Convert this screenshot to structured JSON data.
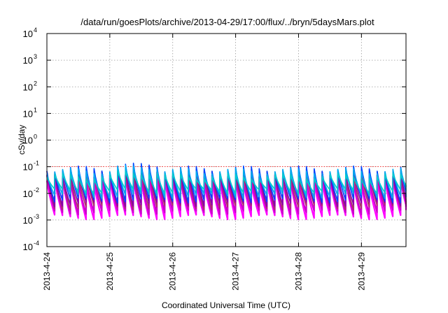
{
  "chart_data": {
    "type": "line",
    "title": "/data/run/goesPlots/archive/2013-04-29/17:00/flux/../bryn/5daysMars.plot",
    "xlabel": "Coordinated Universal Time (UTC)",
    "ylabel": "cSv/day",
    "yscale": "log",
    "ylim": [
      0.0001,
      10000
    ],
    "xlim": [
      "2013-04-24 00:00",
      "2013-04-29 17:00"
    ],
    "grid": true,
    "x_tick_labels": [
      "2013-4-24",
      "2013-4-25",
      "2013-4-26",
      "2013-4-27",
      "2013-4-28",
      "2013-4-29"
    ],
    "y_ticks": [
      {
        "value": 0.0001,
        "base": "10",
        "exp": "-4"
      },
      {
        "value": 0.001,
        "base": "10",
        "exp": "-3"
      },
      {
        "value": 0.01,
        "base": "10",
        "exp": "-2"
      },
      {
        "value": 0.1,
        "base": "10",
        "exp": "-1"
      },
      {
        "value": 1,
        "base": "10",
        "exp": "0"
      },
      {
        "value": 10,
        "base": "10",
        "exp": "1"
      },
      {
        "value": 100,
        "base": "10",
        "exp": "2"
      },
      {
        "value": 1000,
        "base": "10",
        "exp": "3"
      },
      {
        "value": 10000,
        "base": "10",
        "exp": "4"
      }
    ],
    "reference_line": {
      "value": 0.1,
      "color": "#ff0000"
    },
    "cycle_hours": 3,
    "series": [
      {
        "color": "#ff00ff",
        "peak": 0.03,
        "trough": 0.0013
      },
      {
        "color": "#cc00cc",
        "peak": 0.04,
        "trough": 0.002
      },
      {
        "color": "#aa3366",
        "peak": 0.055,
        "trough": 0.003
      },
      {
        "color": "#8800aa",
        "peak": 0.065,
        "trough": 0.004
      },
      {
        "color": "#0044ff",
        "peak": 0.085,
        "trough": 0.0055
      },
      {
        "color": "#00aaee",
        "peak": 0.07,
        "trough": 0.008
      },
      {
        "color": "#00cccc",
        "peak": 0.045,
        "trough": 0.012
      }
    ]
  }
}
